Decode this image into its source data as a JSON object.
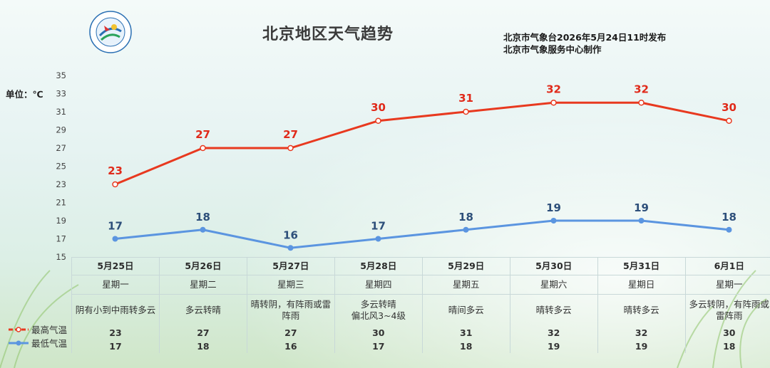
{
  "title": "北京地区天气趋势",
  "publisher": {
    "line1": "北京市气象台2026年5月24日11时发布",
    "line2": "北京市气象服务中心制作"
  },
  "unit": "单位：℃",
  "logo": {
    "icon": "meteorological-service-logo-icon"
  },
  "colors": {
    "high": "#e8391f",
    "low": "#5b95e0",
    "high_label": "#e02a1a",
    "low_label": "#2d4f7a"
  },
  "chart_data": {
    "type": "line",
    "title": "北京地区天气趋势",
    "ylabel": "单位：℃",
    "ylim": [
      15,
      35
    ],
    "yticks": [
      15,
      17,
      19,
      21,
      23,
      25,
      27,
      29,
      31,
      33,
      35
    ],
    "grid": false,
    "categories": [
      "5月25日",
      "5月26日",
      "5月27日",
      "5月28日",
      "5月29日",
      "5月30日",
      "5月31日",
      "6月1日"
    ],
    "series": [
      {
        "name": "最高气温",
        "values": [
          23,
          27,
          27,
          30,
          31,
          32,
          32,
          30
        ]
      },
      {
        "name": "最低气温",
        "values": [
          17,
          18,
          16,
          17,
          18,
          19,
          19,
          18
        ]
      }
    ]
  },
  "table": {
    "dates": [
      "5月25日",
      "5月26日",
      "5月27日",
      "5月28日",
      "5月29日",
      "5月30日",
      "5月31日",
      "6月1日"
    ],
    "weekdays": [
      "星期一",
      "星期二",
      "星期三",
      "星期四",
      "星期五",
      "星期六",
      "星期日",
      "星期一"
    ],
    "weather": [
      "阴有小到中雨转多云",
      "多云转晴",
      "晴转阴，有阵雨或雷阵雨",
      "多云转晴\n偏北风3~4级",
      "晴间多云",
      "晴转多云",
      "晴转多云",
      "多云转阴，有阵雨或雷阵雨"
    ],
    "high_label": "最高气温",
    "low_label": "最低气温",
    "highs": [
      "23",
      "27",
      "27",
      "30",
      "31",
      "32",
      "32",
      "30"
    ],
    "lows": [
      "17",
      "18",
      "16",
      "17",
      "18",
      "19",
      "19",
      "18"
    ]
  }
}
